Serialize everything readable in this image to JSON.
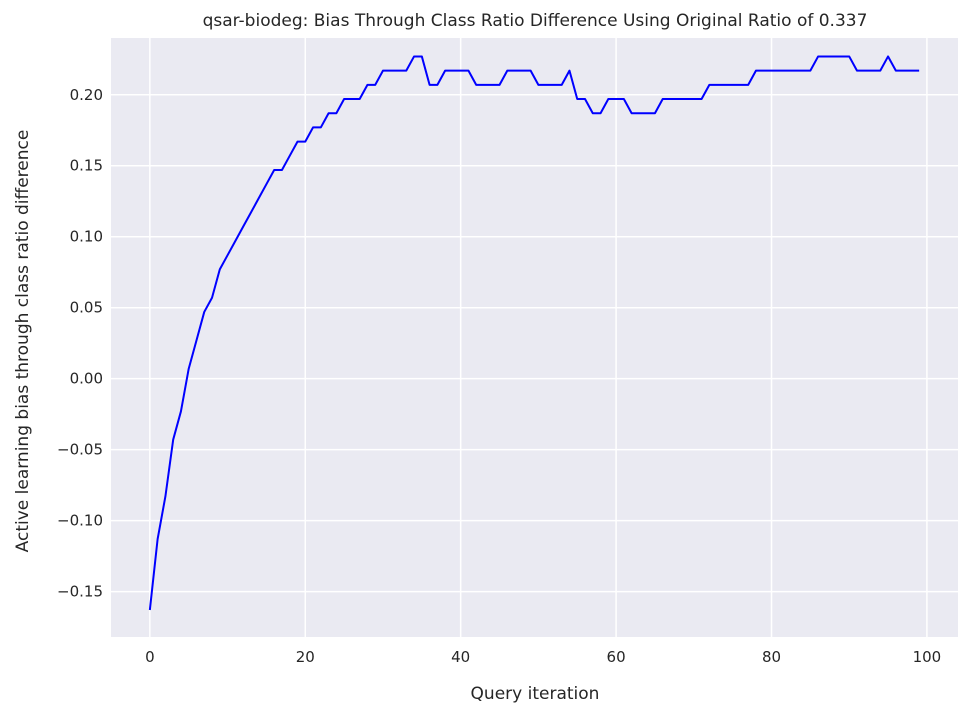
{
  "chart_data": {
    "type": "line",
    "title": "qsar-biodeg: Bias Through Class Ratio Difference Using Original Ratio of 0.337",
    "xlabel": "Query iteration",
    "ylabel": "Active learning bias through class ratio difference",
    "xlim": [
      -5,
      104
    ],
    "ylim": [
      -0.182,
      0.24
    ],
    "xticks": [
      0,
      20,
      40,
      60,
      80,
      100
    ],
    "xtick_labels": [
      "0",
      "20",
      "40",
      "60",
      "80",
      "100"
    ],
    "yticks": [
      -0.15,
      -0.1,
      -0.05,
      0.0,
      0.05,
      0.1,
      0.15,
      0.2
    ],
    "ytick_labels": [
      "−0.15",
      "−0.10",
      "−0.05",
      "0.00",
      "0.05",
      "0.10",
      "0.15",
      "0.20"
    ],
    "grid": true,
    "colors": {
      "background": "#eaeaf2",
      "grid": "#ffffff",
      "line": "#0000ff",
      "text": "#262626"
    },
    "series": [
      {
        "x": [
          0,
          1,
          2,
          3,
          4,
          5,
          6,
          7,
          8,
          9,
          10,
          11,
          12,
          13,
          14,
          15,
          16,
          17,
          18,
          19,
          20,
          21,
          22,
          23,
          24,
          25,
          26,
          27,
          28,
          29,
          30,
          31,
          32,
          33,
          34,
          35,
          36,
          37,
          38,
          39,
          40,
          41,
          42,
          43,
          44,
          45,
          46,
          47,
          48,
          49,
          50,
          51,
          52,
          53,
          54,
          55,
          56,
          57,
          58,
          59,
          60,
          61,
          62,
          63,
          64,
          65,
          66,
          67,
          68,
          69,
          70,
          71,
          72,
          73,
          74,
          75,
          76,
          77,
          78,
          79,
          80,
          81,
          82,
          83,
          84,
          85,
          86,
          87,
          88,
          89,
          90,
          91,
          92,
          93,
          94,
          95,
          96,
          97,
          98,
          99
        ],
        "values": [
          -0.163,
          -0.113,
          -0.083,
          -0.043,
          -0.023,
          0.007,
          0.027,
          0.047,
          0.057,
          0.077,
          0.087,
          0.097,
          0.107,
          0.117,
          0.127,
          0.137,
          0.147,
          0.147,
          0.157,
          0.167,
          0.167,
          0.177,
          0.177,
          0.187,
          0.187,
          0.197,
          0.197,
          0.197,
          0.207,
          0.207,
          0.217,
          0.217,
          0.217,
          0.217,
          0.227,
          0.227,
          0.207,
          0.207,
          0.217,
          0.217,
          0.217,
          0.217,
          0.207,
          0.207,
          0.207,
          0.207,
          0.217,
          0.217,
          0.217,
          0.217,
          0.207,
          0.207,
          0.207,
          0.207,
          0.217,
          0.197,
          0.197,
          0.187,
          0.187,
          0.197,
          0.197,
          0.197,
          0.187,
          0.187,
          0.187,
          0.187,
          0.197,
          0.197,
          0.197,
          0.197,
          0.197,
          0.197,
          0.207,
          0.207,
          0.207,
          0.207,
          0.207,
          0.207,
          0.217,
          0.217,
          0.217,
          0.217,
          0.217,
          0.217,
          0.217,
          0.217,
          0.227,
          0.227,
          0.227,
          0.227,
          0.227,
          0.217,
          0.217,
          0.217,
          0.217,
          0.227,
          0.217,
          0.217,
          0.217,
          0.217
        ]
      }
    ]
  }
}
